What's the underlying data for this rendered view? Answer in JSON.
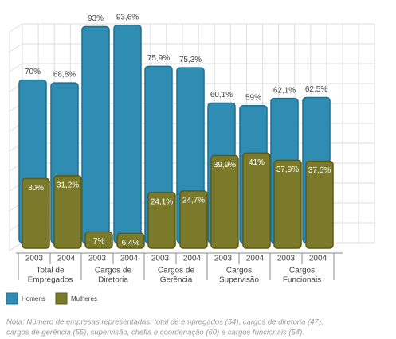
{
  "chart_data": {
    "type": "bar",
    "categories": [
      "2003",
      "2004",
      "2003",
      "2004",
      "2003",
      "2004",
      "2003",
      "2004",
      "2003",
      "2004"
    ],
    "groups": [
      [
        "Total de",
        "Empregados"
      ],
      [
        "Cargos de",
        "Diretoria"
      ],
      [
        "Cargos de",
        "Gerência"
      ],
      [
        "Cargos",
        "Supervisão"
      ],
      [
        "Cargos",
        "Funcionais"
      ]
    ],
    "series": [
      {
        "name": "Homens",
        "color": "#2f8db3",
        "values": [
          70,
          68.8,
          93,
          93.6,
          75.9,
          75.3,
          60.1,
          59,
          62.1,
          62.5
        ],
        "value_labels": [
          "70%",
          "68,8%",
          "93%",
          "93,6%",
          "75,9%",
          "75,3%",
          "60,1%",
          "59%",
          "62,1%",
          "62,5%"
        ]
      },
      {
        "name": "Mulheres",
        "color": "#7b7a2b",
        "values": [
          30,
          31.2,
          7,
          6.4,
          24.1,
          24.7,
          39.9,
          41,
          37.9,
          37.5
        ],
        "value_labels": [
          "30%",
          "31,2%",
          "7%",
          "6,4%",
          "24,1%",
          "24,7%",
          "39,9%",
          "41%",
          "37,9%",
          "37,5%"
        ]
      }
    ],
    "ylim": [
      0,
      100
    ],
    "note": [
      "Nota: Número de empresas representadas: total de empregados (54), cargos de diretoria (47),",
      "cargos de gerência (55), supervisão, chefia e coordenação (60) e cargos funcionais (54)."
    ]
  }
}
